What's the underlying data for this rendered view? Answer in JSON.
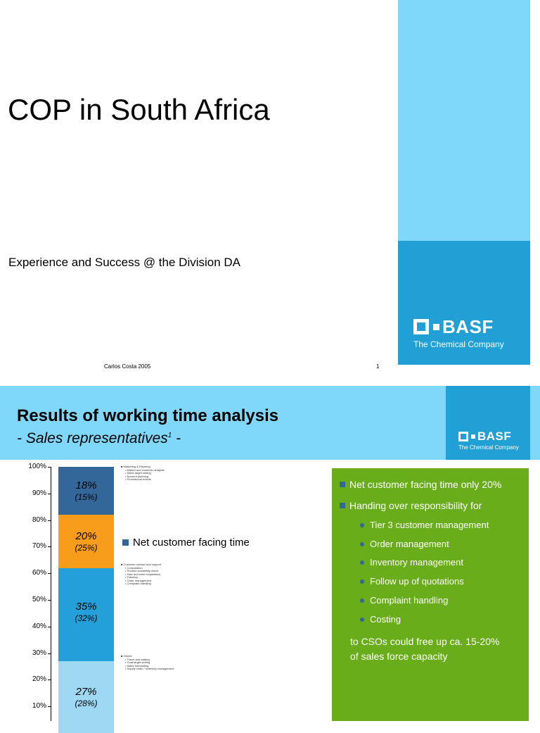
{
  "slide1": {
    "title": "COP in South Africa",
    "subtitle": "Experience and Success @ the Division DA",
    "author": "Carlos Costa 2005",
    "page_number": "1",
    "logo": {
      "name": "BASF",
      "tagline": "The Chemical Company"
    }
  },
  "slide2": {
    "title": "Results of working time analysis",
    "subtitle_prefix": "- Sales representatives",
    "subtitle_sup": "1",
    "subtitle_suffix": " -",
    "logo": {
      "name": "BASF",
      "tagline": "The Chemical Company"
    },
    "legend": "Net customer facing time",
    "tiny_lists": {
      "top": {
        "heading": "Marketing & Planning",
        "items": [
          "Market and customer analysis",
          "Sales target setting",
          "Account planning",
          "Promotional events"
        ]
      },
      "mid": {
        "heading": "Customer contact and support",
        "items": [
          "Consultation",
          "Product availability check",
          "Take and enter requisitions",
          "Tracking",
          "Order management",
          "Complaint handling"
        ]
      },
      "bottom": {
        "heading": "Others",
        "items": [
          "Travel and waiting",
          "Goal target setting",
          "Sales forecasting",
          "Supply chain / inventory management"
        ]
      }
    },
    "green_box": {
      "bullets": [
        "Net customer facing time only 20%",
        "Handing over responsibility for"
      ],
      "sub_bullets": [
        "Tier 3 customer management",
        "Order management",
        "Inventory management",
        "Follow up of quotations",
        "Complaint handling",
        "Costing"
      ],
      "conclusion_line1": "to CSOs could free up ca. 15-20%",
      "conclusion_line2": "of sales force capacity"
    }
  },
  "chart_data": {
    "type": "bar",
    "stacked": true,
    "y_tick_labels": [
      "100%",
      "90%",
      "80%",
      "70%",
      "60%",
      "50%",
      "40%",
      "30%",
      "20%",
      "10%"
    ],
    "ylim": [
      0,
      100
    ],
    "segments_bottom_to_top": [
      {
        "label": "27%",
        "prior": "(28%)",
        "value": 27,
        "color": "#9ed8f2"
      },
      {
        "label": "35%",
        "prior": "(32%)",
        "value": 35,
        "color": "#23a0d8"
      },
      {
        "label": "20%",
        "prior": "(25%)",
        "value": 20,
        "color": "#f89c1c"
      },
      {
        "label": "18%",
        "prior": "(15%)",
        "value": 18,
        "color": "#336699"
      }
    ]
  }
}
